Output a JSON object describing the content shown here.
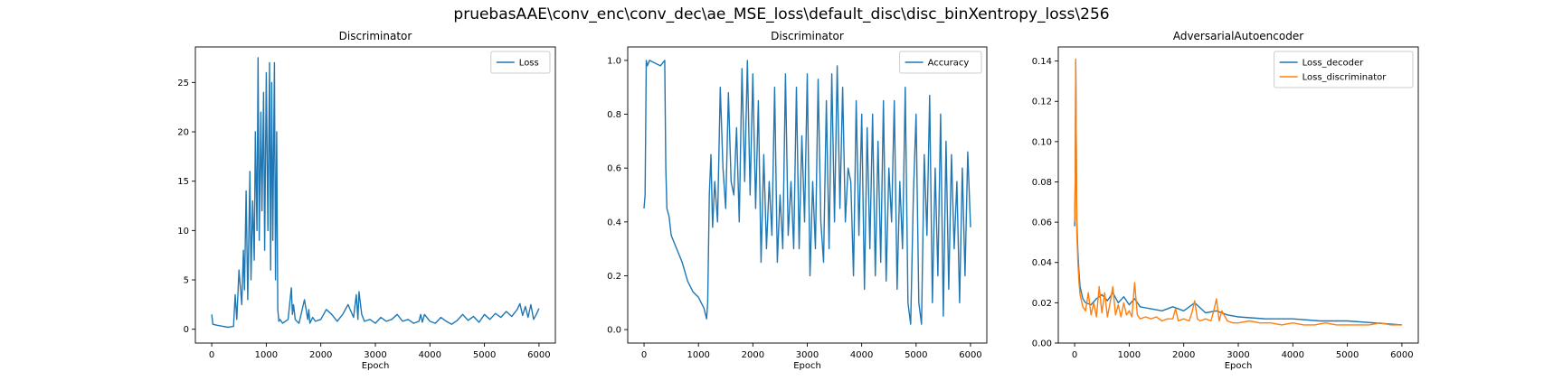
{
  "figure": {
    "suptitle": "pruebasAAE\\conv_enc\\conv_dec\\ae_MSE_loss\\default_disc\\disc_binXentropy_loss\\256"
  },
  "colors": {
    "blue": "#1f77b4",
    "orange": "#ff7f0e"
  },
  "chart_data": [
    {
      "type": "line",
      "title": "Discriminator",
      "xlabel": "Epoch",
      "ylabel": "",
      "xlim": [
        -300,
        6300
      ],
      "ylim": [
        -1.4,
        28.6
      ],
      "xticks": [
        0,
        1000,
        2000,
        3000,
        4000,
        5000,
        6000
      ],
      "yticks": [
        0,
        5,
        10,
        15,
        20,
        25
      ],
      "legend": "top-right",
      "grid": false,
      "series": [
        {
          "name": "Loss",
          "color": "#1f77b4",
          "x": [
            0,
            20,
            100,
            200,
            300,
            400,
            430,
            460,
            500,
            550,
            580,
            600,
            630,
            660,
            700,
            720,
            750,
            780,
            800,
            830,
            850,
            870,
            900,
            920,
            950,
            970,
            1000,
            1030,
            1060,
            1080,
            1100,
            1120,
            1150,
            1170,
            1190,
            1210,
            1230,
            1250,
            1300,
            1400,
            1460,
            1480,
            1500,
            1530,
            1560,
            1600,
            1700,
            1760,
            1780,
            1800,
            1850,
            1900,
            2000,
            2100,
            2200,
            2300,
            2400,
            2500,
            2600,
            2650,
            2680,
            2700,
            2750,
            2800,
            2900,
            3000,
            3100,
            3200,
            3300,
            3400,
            3500,
            3600,
            3700,
            3800,
            3830,
            3860,
            3900,
            4000,
            4100,
            4200,
            4300,
            4400,
            4500,
            4600,
            4700,
            4800,
            4900,
            5000,
            5100,
            5200,
            5300,
            5400,
            5500,
            5600,
            5650,
            5700,
            5750,
            5800,
            5850,
            5900,
            5950,
            6000
          ],
          "y": [
            1.5,
            0.5,
            0.4,
            0.3,
            0.2,
            0.3,
            3.5,
            1.0,
            6.0,
            2.5,
            8.0,
            4.0,
            14.0,
            3.0,
            16.0,
            5.0,
            13.0,
            7.0,
            20.0,
            10.0,
            27.5,
            9.0,
            22.0,
            12.0,
            24.0,
            8.0,
            26.0,
            10.0,
            27.0,
            6.0,
            25.0,
            9.0,
            27.0,
            5.0,
            20.0,
            2.0,
            0.8,
            1.0,
            0.6,
            1.0,
            4.2,
            1.5,
            2.5,
            1.0,
            0.8,
            0.6,
            3.0,
            1.0,
            2.0,
            0.6,
            1.2,
            0.8,
            1.0,
            2.0,
            1.5,
            0.8,
            1.5,
            2.5,
            1.2,
            3.5,
            1.0,
            3.8,
            1.5,
            0.8,
            1.0,
            0.6,
            1.2,
            0.8,
            1.0,
            1.5,
            0.8,
            1.0,
            0.6,
            0.8,
            1.5,
            0.7,
            1.5,
            0.8,
            0.6,
            1.2,
            0.8,
            0.5,
            0.9,
            1.5,
            0.9,
            1.3,
            0.7,
            1.5,
            1.0,
            1.6,
            1.2,
            1.8,
            1.3,
            2.0,
            2.6,
            1.4,
            2.3,
            1.2,
            2.5,
            1.0,
            1.5,
            2.1
          ]
        }
      ]
    },
    {
      "type": "line",
      "title": "Discriminator",
      "xlabel": "Epoch",
      "ylabel": "",
      "xlim": [
        -300,
        6300
      ],
      "ylim": [
        -0.05,
        1.05
      ],
      "xticks": [
        0,
        1000,
        2000,
        3000,
        4000,
        5000,
        6000
      ],
      "yticks": [
        0.0,
        0.2,
        0.4,
        0.6,
        0.8,
        1.0
      ],
      "legend": "top-right",
      "grid": false,
      "series": [
        {
          "name": "Accuracy",
          "color": "#1f77b4",
          "x": [
            0,
            20,
            40,
            60,
            100,
            200,
            300,
            380,
            400,
            420,
            460,
            500,
            600,
            700,
            800,
            900,
            1000,
            1100,
            1150,
            1170,
            1200,
            1230,
            1260,
            1300,
            1350,
            1400,
            1450,
            1500,
            1550,
            1600,
            1650,
            1700,
            1750,
            1800,
            1850,
            1900,
            1950,
            2000,
            2050,
            2100,
            2150,
            2200,
            2250,
            2300,
            2350,
            2400,
            2450,
            2500,
            2550,
            2600,
            2650,
            2700,
            2750,
            2800,
            2850,
            2900,
            2950,
            3000,
            3050,
            3100,
            3150,
            3200,
            3250,
            3300,
            3350,
            3400,
            3450,
            3500,
            3550,
            3600,
            3650,
            3700,
            3750,
            3800,
            3850,
            3900,
            3950,
            4000,
            4050,
            4100,
            4150,
            4200,
            4250,
            4300,
            4350,
            4400,
            4450,
            4500,
            4550,
            4600,
            4650,
            4700,
            4750,
            4800,
            4850,
            4900,
            4950,
            5000,
            5050,
            5100,
            5150,
            5200,
            5250,
            5300,
            5350,
            5400,
            5450,
            5500,
            5550,
            5600,
            5650,
            5700,
            5750,
            5800,
            5850,
            5900,
            5950,
            6000
          ],
          "y": [
            0.45,
            0.5,
            1.0,
            0.98,
            1.0,
            0.99,
            0.98,
            1.0,
            0.6,
            0.45,
            0.42,
            0.35,
            0.3,
            0.25,
            0.18,
            0.14,
            0.12,
            0.08,
            0.04,
            0.1,
            0.5,
            0.65,
            0.38,
            0.55,
            0.4,
            0.9,
            0.6,
            0.45,
            0.88,
            0.55,
            0.5,
            0.75,
            0.4,
            0.97,
            0.55,
            1.0,
            0.5,
            0.95,
            0.45,
            0.85,
            0.25,
            0.65,
            0.3,
            0.55,
            0.35,
            0.9,
            0.25,
            0.5,
            0.3,
            0.95,
            0.35,
            0.55,
            0.3,
            0.9,
            0.3,
            0.72,
            0.4,
            0.95,
            0.2,
            0.55,
            0.3,
            0.93,
            0.4,
            0.25,
            0.85,
            0.3,
            0.95,
            0.4,
            0.98,
            0.45,
            0.9,
            0.4,
            0.6,
            0.55,
            0.2,
            0.85,
            0.35,
            0.8,
            0.15,
            0.75,
            0.3,
            0.8,
            0.2,
            0.7,
            0.25,
            0.85,
            0.18,
            0.6,
            0.4,
            0.85,
            0.15,
            0.55,
            0.3,
            0.9,
            0.1,
            0.02,
            0.5,
            0.8,
            0.1,
            0.02,
            0.65,
            0.35,
            0.87,
            0.1,
            0.6,
            0.2,
            0.8,
            0.05,
            0.7,
            0.15,
            0.65,
            0.3,
            0.55,
            0.1,
            0.6,
            0.2,
            0.66,
            0.38
          ]
        }
      ]
    },
    {
      "type": "line",
      "title": "AdversarialAutoencoder",
      "xlabel": "Epoch",
      "ylabel": "",
      "xlim": [
        -300,
        6300
      ],
      "ylim": [
        0.0,
        0.147
      ],
      "xticks": [
        0,
        1000,
        2000,
        3000,
        4000,
        5000,
        6000
      ],
      "yticks": [
        0.0,
        0.02,
        0.04,
        0.06,
        0.08,
        0.1,
        0.12,
        0.14
      ],
      "legend": "top-right",
      "grid": false,
      "series": [
        {
          "name": "Loss_decoder",
          "color": "#1f77b4",
          "x": [
            0,
            10,
            20,
            40,
            60,
            80,
            100,
            150,
            200,
            300,
            400,
            500,
            600,
            700,
            800,
            900,
            1000,
            1100,
            1200,
            1400,
            1600,
            1800,
            2000,
            2200,
            2400,
            2600,
            2800,
            3000,
            3500,
            4000,
            4500,
            5000,
            5500,
            6000
          ],
          "y": [
            0.058,
            0.08,
            0.14,
            0.06,
            0.045,
            0.035,
            0.028,
            0.022,
            0.02,
            0.019,
            0.022,
            0.024,
            0.021,
            0.025,
            0.02,
            0.023,
            0.019,
            0.022,
            0.018,
            0.017,
            0.016,
            0.018,
            0.016,
            0.02,
            0.015,
            0.016,
            0.014,
            0.013,
            0.012,
            0.012,
            0.011,
            0.011,
            0.01,
            0.009
          ]
        },
        {
          "name": "Loss_discriminator",
          "color": "#ff7f0e",
          "x": [
            0,
            10,
            20,
            40,
            60,
            80,
            100,
            150,
            200,
            250,
            300,
            350,
            400,
            450,
            500,
            550,
            600,
            650,
            700,
            750,
            800,
            850,
            900,
            950,
            1000,
            1050,
            1100,
            1150,
            1200,
            1300,
            1400,
            1500,
            1600,
            1700,
            1800,
            1850,
            1900,
            2000,
            2100,
            2150,
            2200,
            2250,
            2300,
            2400,
            2500,
            2550,
            2600,
            2650,
            2700,
            2800,
            2900,
            3000,
            3200,
            3400,
            3600,
            3800,
            4000,
            4200,
            4400,
            4600,
            4800,
            5000,
            5200,
            5400,
            5600,
            5800,
            6000
          ],
          "y": [
            0.06,
            0.078,
            0.141,
            0.055,
            0.04,
            0.03,
            0.024,
            0.018,
            0.016,
            0.025,
            0.014,
            0.02,
            0.013,
            0.028,
            0.015,
            0.025,
            0.013,
            0.02,
            0.028,
            0.014,
            0.019,
            0.013,
            0.02,
            0.014,
            0.016,
            0.013,
            0.03,
            0.014,
            0.012,
            0.013,
            0.012,
            0.013,
            0.011,
            0.012,
            0.012,
            0.017,
            0.011,
            0.012,
            0.011,
            0.015,
            0.021,
            0.012,
            0.011,
            0.012,
            0.011,
            0.016,
            0.022,
            0.011,
            0.016,
            0.011,
            0.01,
            0.01,
            0.011,
            0.01,
            0.01,
            0.009,
            0.01,
            0.009,
            0.009,
            0.01,
            0.009,
            0.009,
            0.009,
            0.009,
            0.01,
            0.009,
            0.009
          ]
        }
      ]
    }
  ]
}
